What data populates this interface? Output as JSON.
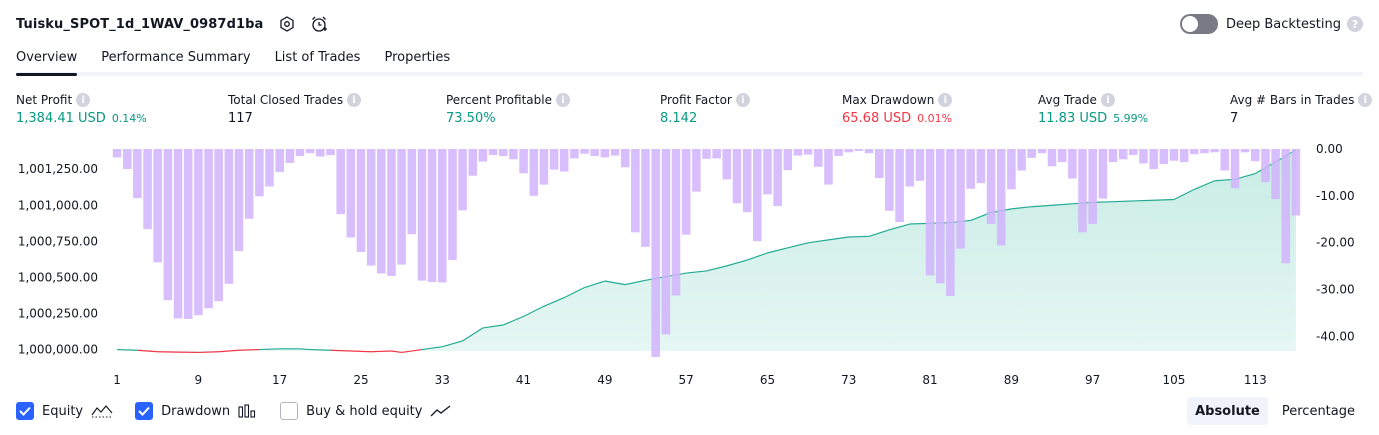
{
  "header": {
    "title": "Tuisku_SPOT_1d_1WAV_0987d1ba",
    "deep_backtesting_label": "Deep Backtesting",
    "help_glyph": "?"
  },
  "tabs": [
    {
      "label": "Overview",
      "active": true
    },
    {
      "label": "Performance Summary",
      "active": false
    },
    {
      "label": "List of Trades",
      "active": false
    },
    {
      "label": "Properties",
      "active": false
    }
  ],
  "stats": {
    "info_glyph": "i",
    "net_profit": {
      "label": "Net Profit",
      "value": "1,384.41 USD",
      "pct": "0.14%"
    },
    "total_closed_trades": {
      "label": "Total Closed Trades",
      "value": "117"
    },
    "percent_profitable": {
      "label": "Percent Profitable",
      "value": "73.50%"
    },
    "profit_factor": {
      "label": "Profit Factor",
      "value": "8.142"
    },
    "max_drawdown": {
      "label": "Max Drawdown",
      "value": "65.68 USD",
      "pct": "0.01%"
    },
    "avg_trade": {
      "label": "Avg Trade",
      "value": "11.83 USD",
      "pct": "5.99%"
    },
    "avg_bars": {
      "label": "Avg # Bars in Trades",
      "value": "7"
    }
  },
  "legend": {
    "equity": "Equity",
    "drawdown": "Drawdown",
    "buy_hold": "Buy & hold equity"
  },
  "mode": {
    "absolute": "Absolute",
    "percentage": "Percentage"
  },
  "colors": {
    "equity_line": "#22ab94",
    "equity_negative": "#f23645",
    "equity_fill": "#c8ece5",
    "drawdown_bar": "#d1b3fb",
    "drawdown_bar_overlap": "#a4a3e0",
    "accent": "#2962ff"
  },
  "chart_data": {
    "type": "bar",
    "x_ticks": [
      "1",
      "9",
      "17",
      "25",
      "33",
      "41",
      "49",
      "57",
      "65",
      "73",
      "81",
      "89",
      "97",
      "105",
      "113"
    ],
    "left_axis": {
      "ticks": [
        "1,000,000.00",
        "1,000,250.00",
        "1,000,500.00",
        "1,000,750.00",
        "1,001,000.00",
        "1,001,250.00"
      ],
      "range": [
        999990,
        1001390
      ]
    },
    "right_axis": {
      "ticks": [
        "0.00",
        "-10.00",
        "-20.00",
        "-30.00",
        "-40.00"
      ],
      "range": [
        -44,
        0
      ]
    },
    "series": [
      {
        "name": "Equity",
        "type": "area",
        "x": [
          1,
          3,
          5,
          7,
          9,
          11,
          13,
          15,
          17,
          19,
          20,
          22,
          24,
          26,
          28,
          29,
          31,
          33,
          35,
          37,
          39,
          41,
          43,
          45,
          47,
          49,
          51,
          53,
          55,
          57,
          59,
          61,
          63,
          65,
          67,
          69,
          71,
          73,
          75,
          77,
          79,
          81,
          83,
          85,
          87,
          89,
          91,
          93,
          95,
          97,
          99,
          101,
          103,
          105,
          107,
          109,
          111,
          113,
          115,
          117
        ],
        "values": [
          1000000,
          999995,
          999985,
          999982,
          999980,
          999985,
          999995,
          1000000,
          1000005,
          1000005,
          1000000,
          999995,
          999990,
          999985,
          999990,
          999980,
          1000000,
          1000020,
          1000060,
          1000150,
          1000170,
          1000230,
          1000300,
          1000360,
          1000430,
          1000475,
          1000450,
          1000480,
          1000505,
          1000530,
          1000545,
          1000580,
          1000620,
          1000670,
          1000705,
          1000740,
          1000760,
          1000780,
          1000785,
          1000830,
          1000870,
          1000875,
          1000880,
          1000895,
          1000950,
          1000975,
          1000990,
          1001000,
          1001010,
          1001020,
          1001025,
          1001030,
          1001035,
          1001040,
          1001110,
          1001170,
          1001180,
          1001220,
          1001300,
          1001384
        ]
      },
      {
        "name": "Drawdown",
        "type": "bar",
        "values": [
          -1.8,
          -4.3,
          -10.5,
          -17.1,
          -24.2,
          -32.3,
          -36.2,
          -36.3,
          -35.5,
          -34.0,
          -32.5,
          -28.8,
          -21.8,
          -14.9,
          -10.1,
          -8.0,
          -4.9,
          -3.0,
          -1.5,
          -0.9,
          -1.6,
          -1.3,
          -13.9,
          -18.9,
          -22.0,
          -24.9,
          -26.6,
          -27.1,
          -24.7,
          -18.2,
          -28.1,
          -28.4,
          -28.5,
          -23.7,
          -13.1,
          -5.7,
          -2.7,
          -1.3,
          -1.5,
          -2.2,
          -5.2,
          -10.0,
          -7.6,
          -4.4,
          -4.8,
          -2.0,
          -1.0,
          -1.5,
          -1.8,
          -1.4,
          -3.9,
          -17.8,
          -20.9,
          -44.4,
          -39.6,
          -31.3,
          -18.3,
          -9.1,
          -2.1,
          -2.0,
          -6.5,
          -11.6,
          -13.5,
          -19.7,
          -9.7,
          -12.2,
          -4.5,
          -1.4,
          -1.2,
          -3.8,
          -7.6,
          -1.5,
          -0.7,
          -0.4,
          -0.9,
          -6.2,
          -13.2,
          -15.6,
          -8.0,
          -6.8,
          -27.0,
          -28.7,
          -31.4,
          -21.3,
          -8.5,
          -7.3,
          -16.0,
          -20.6,
          -8.6,
          -4.6,
          -1.9,
          -0.9,
          -3.7,
          -2.8,
          -6.3,
          -17.8,
          -16.0,
          -10.6,
          -2.8,
          -2.2,
          -1.3,
          -3.1,
          -4.3,
          -3.2,
          -2.5,
          -2.8,
          -1.1,
          -0.9,
          -0.7,
          -4.6,
          -8.4,
          -0.7,
          -2.6,
          -7.1,
          -10.7,
          -24.4,
          -14.2
        ]
      }
    ]
  }
}
